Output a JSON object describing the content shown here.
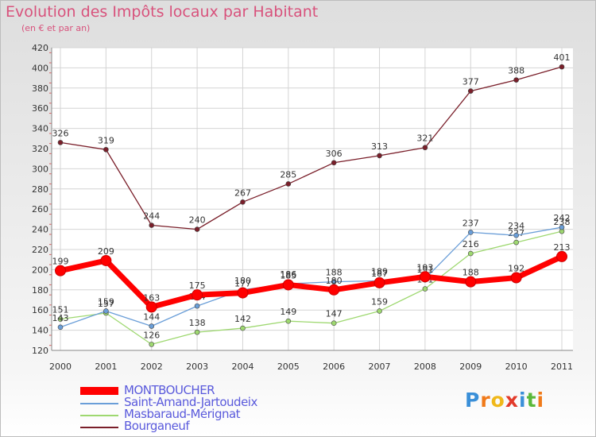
{
  "chart_data": {
    "type": "line",
    "title": "Evolution des Impôts locaux par Habitant",
    "subtitle": "(en € et par an)",
    "categories": [
      "2000",
      "2001",
      "2002",
      "2003",
      "2004",
      "2005",
      "2006",
      "2007",
      "2008",
      "2009",
      "2010",
      "2011"
    ],
    "ylim": [
      120,
      420
    ],
    "yticks": [
      120,
      140,
      160,
      180,
      200,
      220,
      240,
      260,
      280,
      300,
      320,
      340,
      360,
      380,
      400,
      420
    ],
    "grid": true,
    "series": [
      {
        "name": "Bourganeuf",
        "color": "#7a1f2a",
        "values": [
          326,
          319,
          244,
          240,
          267,
          285,
          306,
          313,
          321,
          377,
          388,
          401
        ]
      },
      {
        "name": "Masbaraud-Mérignat",
        "color": "#9ed870",
        "values": [
          151,
          157,
          126,
          138,
          142,
          149,
          147,
          159,
          181,
          216,
          227,
          238
        ]
      },
      {
        "name": "Saint-Amand-Jartoudeix",
        "color": "#6a9ed8",
        "values": [
          143,
          159,
          144,
          164,
          180,
          186,
          188,
          189,
          191,
          237,
          234,
          242
        ]
      },
      {
        "name": "MONTBOUCHER",
        "color": "#ff0000",
        "values": [
          199,
          209,
          163,
          175,
          177,
          185,
          180,
          187,
          193,
          188,
          192,
          213
        ]
      }
    ],
    "legend": [
      "MONTBOUCHER",
      "Saint-Amand-Jartoudeix",
      "Masbaraud-Mérignat",
      "Bourganeuf"
    ]
  },
  "logo": {
    "text": "Proxiti",
    "colors": [
      "#3a8fd8",
      "#f07a1a",
      "#f0b81a",
      "#e23a2a",
      "#3a8fd8",
      "#5ab83a",
      "#f07a1a"
    ]
  }
}
